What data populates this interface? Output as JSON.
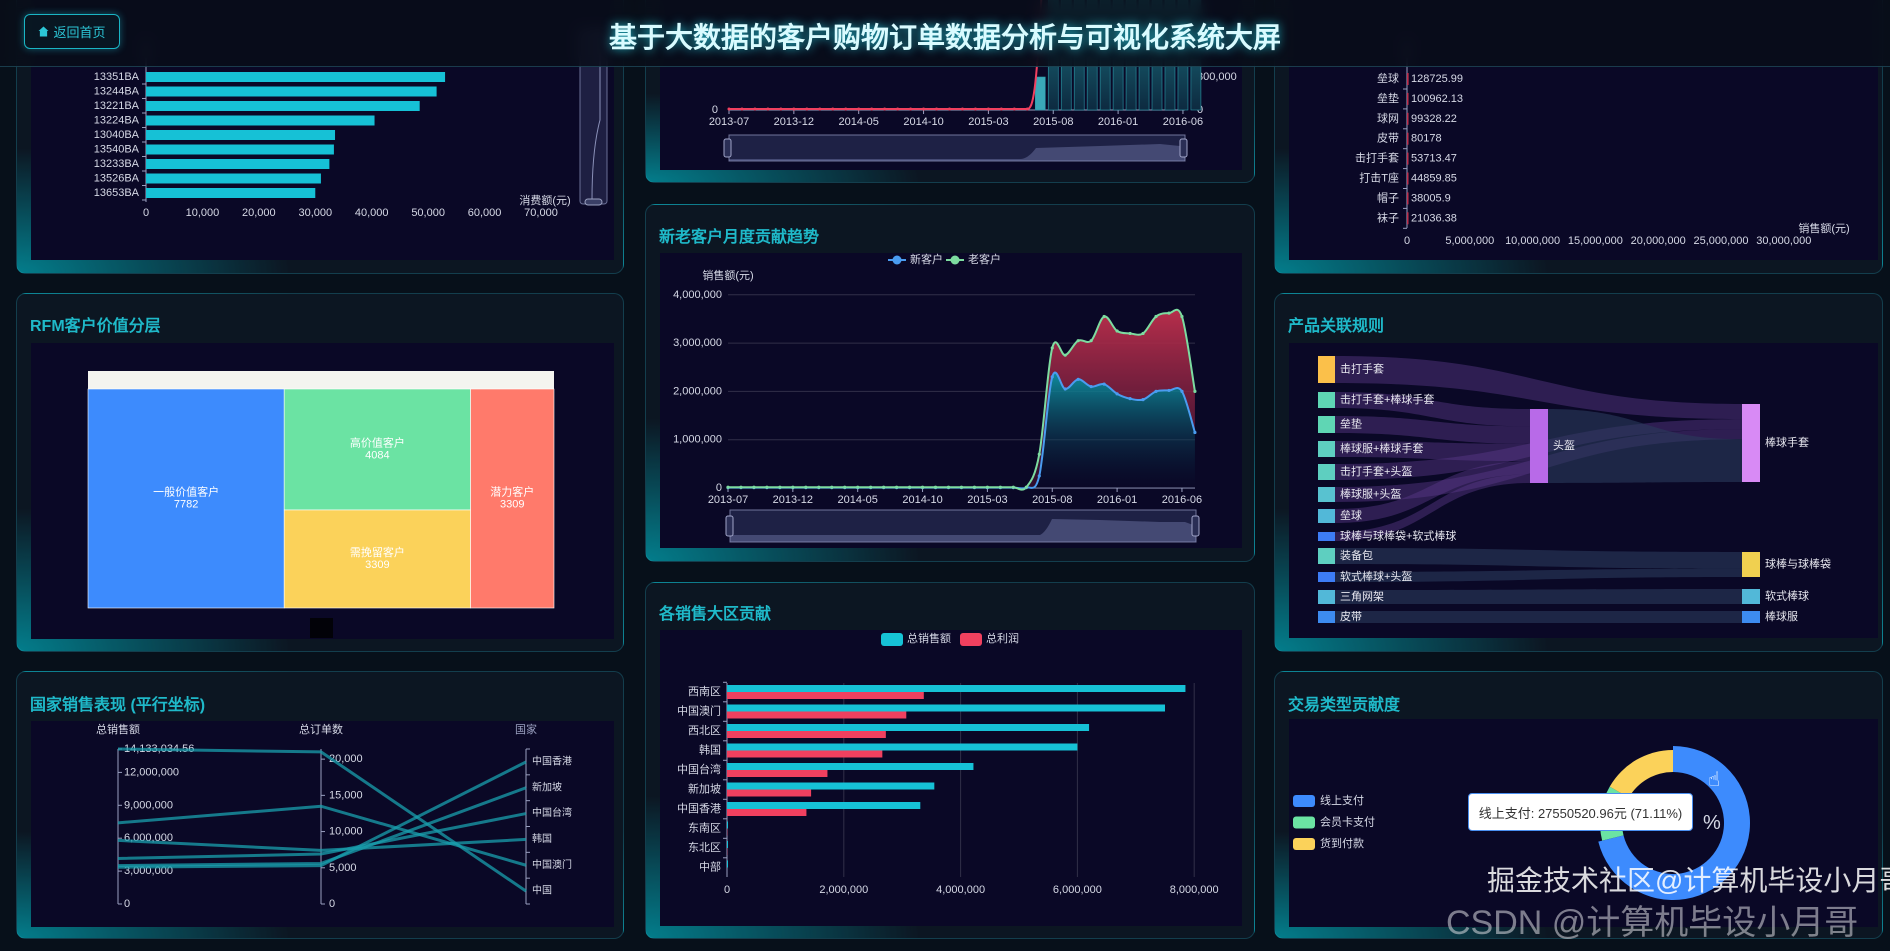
{
  "header": {
    "title": "基于大数据的客户购物订单数据分析与可视化系统大屏",
    "home_button": "返回首页",
    "home_icon": "home-icon"
  },
  "panels": {
    "rfm": "RFM客户价值分层",
    "country": "国家销售表现 (平行坐标)",
    "trend": "新老客户月度贡献趋势",
    "region": "各销售大区贡献",
    "assoc": "产品关联规则",
    "trade": "交易类型贡献度"
  },
  "colors": {
    "accent": "#1fb9c9",
    "bar_cyan": "#16c1d6",
    "red": "#f0405f",
    "blue": "#3d8bfd",
    "green": "#6be3a3",
    "yellow": "#fbd25a",
    "salmon": "#ff7a6b"
  },
  "tooltip": {
    "text": "线上支付: 27550520.96元 (71.11%)"
  },
  "donut_center_fragment": "%",
  "watermark": {
    "csdn": "CSDN @计算机毕设小月哥",
    "juejin": "掘金技术社区@计算机毕设小月哥"
  },
  "chart_data": [
    {
      "id": "customer_top",
      "type": "bar",
      "orientation": "horizontal",
      "categories": [
        "13351BA",
        "13244BA",
        "13221BA",
        "13224BA",
        "13040BA",
        "13540BA",
        "13233BA",
        "13526BA",
        "13653BA"
      ],
      "values": [
        53000,
        51500,
        48500,
        40500,
        33500,
        33300,
        32500,
        31000,
        30000
      ],
      "xlabel": "消费额(元)",
      "xlim": [
        0,
        70000
      ],
      "xticks": [
        "0",
        "10,000",
        "20,000",
        "30,000",
        "40,000",
        "50,000",
        "60,000",
        "70,000"
      ],
      "datazoom": "vertical-right"
    },
    {
      "id": "monthly_sales_orders",
      "type": "bar+line",
      "xticks": [
        "2013-07",
        "2013-12",
        "2014-05",
        "2014-10",
        "2015-03",
        "2015-08",
        "2016-01",
        "2016-06"
      ],
      "left_yticks": [
        "0"
      ],
      "right_yticks": [
        "0",
        "300,000"
      ],
      "line_zero_until": "2015-06",
      "bar_months": [
        "2015-07",
        "2015-08",
        "2015-09",
        "2015-10",
        "2015-11",
        "2015-12",
        "2016-01",
        "2016-02",
        "2016-03",
        "2016-04",
        "2016-05",
        "2016-06",
        "2016-07"
      ],
      "bar_values": [
        300000,
        null,
        null,
        null,
        null,
        null,
        null,
        null,
        null,
        null,
        null,
        null,
        null
      ],
      "datazoom": "bottom"
    },
    {
      "id": "product_sales",
      "type": "bar",
      "orientation": "horizontal",
      "categories": [
        "垒球",
        "垒垫",
        "球网",
        "皮带",
        "击打手套",
        "打击T座",
        "帽子",
        "袜子"
      ],
      "values": [
        128725.99,
        100962.13,
        99328.22,
        80178,
        53713.47,
        44859.85,
        38005.9,
        21036.38
      ],
      "value_labels": [
        "128725.99",
        "100962.13",
        "99328.22",
        "80178",
        "53713.47",
        "44859.85",
        "38005.9",
        "21036.38"
      ],
      "xlabel": "销售额(元)",
      "xlim": [
        0,
        30000000
      ],
      "xticks": [
        "0",
        "5,000,000",
        "10,000,000",
        "15,000,000",
        "20,000,000",
        "25,000,000",
        "30,000,000"
      ]
    },
    {
      "id": "rfm",
      "type": "treemap",
      "items": [
        {
          "name": "一般价值客户",
          "value": 7782,
          "label": "7782",
          "color": "#3d8bfd"
        },
        {
          "name": "高价值客户",
          "value": 4084,
          "label": "4084",
          "color": "#6be3a3"
        },
        {
          "name": "需挽留客户",
          "value": 3309,
          "label": "3309",
          "color": "#fbd25a"
        },
        {
          "name": "潜力客户",
          "value": 3309,
          "label": "3309",
          "color": "#ff7a6b"
        }
      ]
    },
    {
      "id": "country_parallel",
      "type": "parallel",
      "axes": [
        {
          "name": "总销售额",
          "max": 14133034.56,
          "ticks": [
            "0",
            "3,000,000",
            "6,000,000",
            "9,000,000",
            "12,000,000",
            "14,133,034.56"
          ]
        },
        {
          "name": "总订单数",
          "max": 21400,
          "ticks": [
            "0",
            "5,000",
            "10,000",
            "15,000",
            "20,000"
          ]
        },
        {
          "name": "国家",
          "categories": [
            "中国",
            "中国澳门",
            "韩国",
            "中国台湾",
            "新加坡",
            "中国香港"
          ]
        }
      ],
      "rows": [
        {
          "sales": 14133034.56,
          "orders": 21000,
          "country": "中国"
        },
        {
          "sales": 7400000,
          "orders": 13500,
          "country": "中国澳门"
        },
        {
          "sales": 5800000,
          "orders": 7400,
          "country": "韩国"
        },
        {
          "sales": 4150000,
          "orders": 6900,
          "country": "中国台湾"
        },
        {
          "sales": 3500000,
          "orders": 5600,
          "country": "新加坡"
        },
        {
          "sales": 3350000,
          "orders": 5300,
          "country": "中国香港"
        }
      ]
    },
    {
      "id": "customer_trend",
      "type": "area",
      "stacked": true,
      "legend": [
        "新客户",
        "老客户"
      ],
      "ylabel": "销售额(元)",
      "ylim": [
        0,
        4000000
      ],
      "yticks": [
        "0",
        "1,000,000",
        "2,000,000",
        "3,000,000",
        "4,000,000"
      ],
      "xticks": [
        "2013-07",
        "2013-12",
        "2014-05",
        "2014-10",
        "2015-03",
        "2015-08",
        "2016-01",
        "2016-06"
      ],
      "x_start": "2013-07",
      "x_end": "2016-07",
      "series": [
        {
          "name": "新客户",
          "color": "#4a9cf0",
          "values": [
            8000,
            8000,
            8000,
            8000,
            8000,
            8000,
            8000,
            8000,
            8000,
            8000,
            8000,
            8000,
            8000,
            8000,
            8000,
            8000,
            8000,
            8000,
            8000,
            8000,
            8000,
            8000,
            8000,
            8000,
            250000,
            2300000,
            2050000,
            2250000,
            2100000,
            2150000,
            1950000,
            1850000,
            1830000,
            2000000,
            2020000,
            2000000,
            1150000
          ]
        },
        {
          "name": "老客户",
          "color": "#7ddca0",
          "values": [
            8000,
            8000,
            8000,
            8000,
            8000,
            8000,
            8000,
            8000,
            8000,
            8000,
            8000,
            8000,
            8000,
            8000,
            8000,
            8000,
            8000,
            8000,
            8000,
            8000,
            8000,
            8000,
            8000,
            8000,
            450000,
            600000,
            700000,
            800000,
            950000,
            1400000,
            1300000,
            1350000,
            1370000,
            1550000,
            1600000,
            1550000,
            850000
          ]
        }
      ],
      "datazoom": "bottom"
    },
    {
      "id": "region",
      "type": "bar",
      "orientation": "horizontal",
      "legend": [
        "总销售额",
        "总利润"
      ],
      "categories": [
        "西南区",
        "中国澳门",
        "西北区",
        "韩国",
        "中国台湾",
        "新加坡",
        "中国香港",
        "东南区",
        "东北区",
        "中部"
      ],
      "series": [
        {
          "name": "总销售额",
          "color": "#16c1d6",
          "values": [
            7850000,
            7500000,
            6200000,
            6000000,
            4220000,
            3550000,
            3310000,
            15000,
            12000,
            0
          ]
        },
        {
          "name": "总利润",
          "color": "#f0405f",
          "values": [
            3370000,
            3070000,
            2720000,
            2660000,
            1720000,
            1440000,
            1360000,
            5000,
            4000,
            0
          ]
        }
      ],
      "xlim": [
        0,
        8000000
      ],
      "xticks": [
        "0",
        "2,000,000",
        "4,000,000",
        "6,000,000",
        "8,000,000"
      ],
      "grid": true
    },
    {
      "id": "product_assoc",
      "type": "sankey",
      "nodes": [
        {
          "name": "击打手套",
          "color": "#fbc04a"
        },
        {
          "name": "击打手套+棒球手套",
          "color": "#5fd6b4"
        },
        {
          "name": "垒垫",
          "color": "#5fd6b4"
        },
        {
          "name": "棒球服+棒球手套",
          "color": "#5ecfc0"
        },
        {
          "name": "击打手套+头盔",
          "color": "#5ecfc0"
        },
        {
          "name": "棒球服+头盔",
          "color": "#58c2d0"
        },
        {
          "name": "垒球",
          "color": "#52b8d8"
        },
        {
          "name": "球棒与球棒袋+软式棒球",
          "color": "#3d7cf5"
        },
        {
          "name": "装备包",
          "color": "#5ecfc0"
        },
        {
          "name": "软式棒球+头盔",
          "color": "#3d7cf5"
        },
        {
          "name": "三角网架",
          "color": "#52b8d8"
        },
        {
          "name": "皮带",
          "color": "#3d8bf0"
        },
        {
          "name": "头盔",
          "color": "#b86ae8"
        },
        {
          "name": "棒球手套",
          "color": "#d88af5"
        },
        {
          "name": "球棒与球棒袋",
          "color": "#f0d050"
        },
        {
          "name": "软式棒球",
          "color": "#52b8d8"
        },
        {
          "name": "棒球服",
          "color": "#3d8bf0"
        }
      ],
      "links": [
        {
          "source": "击打手套",
          "target": "棒球手套",
          "value": 3
        },
        {
          "source": "击打手套+棒球手套",
          "target": "头盔",
          "value": 2
        },
        {
          "source": "垒垫",
          "target": "头盔",
          "value": 2
        },
        {
          "source": "棒球服+棒球手套",
          "target": "头盔",
          "value": 2
        },
        {
          "source": "击打手套+头盔",
          "target": "棒球手套",
          "value": 2
        },
        {
          "source": "棒球服+头盔",
          "target": "棒球手套",
          "value": 2
        },
        {
          "source": "垒球",
          "target": "头盔",
          "value": 1.5
        },
        {
          "source": "球棒与球棒袋+软式棒球",
          "target": "头盔",
          "value": 1
        },
        {
          "source": "头盔",
          "target": "棒球手套",
          "value": 8.5
        },
        {
          "source": "装备包",
          "target": "球棒与球棒袋",
          "value": 2
        },
        {
          "source": "软式棒球+头盔",
          "target": "球棒与球棒袋",
          "value": 1
        },
        {
          "source": "三角网架",
          "target": "软式棒球",
          "value": 1.5
        },
        {
          "source": "皮带",
          "target": "棒球服",
          "value": 1.2
        }
      ]
    },
    {
      "id": "trade_type",
      "type": "pie",
      "donut": true,
      "legend_position": "left",
      "slices": [
        {
          "name": "线上支付",
          "percent": 71.11,
          "value": 27550520.96,
          "color": "#3d8bfd"
        },
        {
          "name": "会员卡支付",
          "percent": 12.2,
          "color": "#6be3a3"
        },
        {
          "name": "货到付款",
          "percent": 16.69,
          "color": "#fbd25a"
        }
      ]
    }
  ]
}
